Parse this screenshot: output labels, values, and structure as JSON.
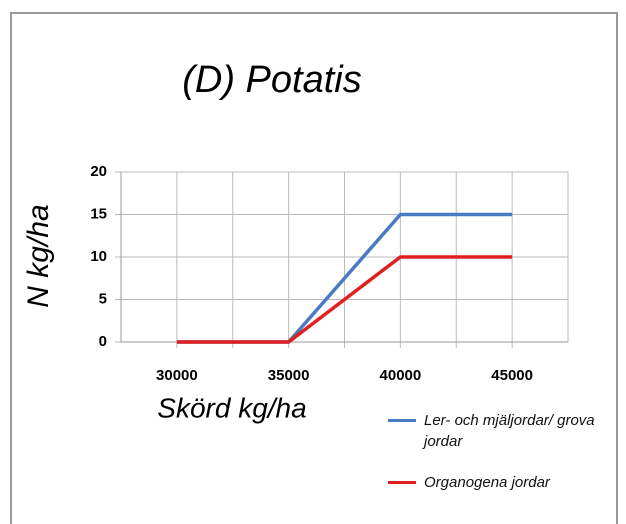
{
  "chart_data": {
    "type": "line",
    "title": "(D) Potatis",
    "x_label": "Skörd kg/ha",
    "y_label": "N kg/ha",
    "x": [
      30000,
      35000,
      40000,
      45000
    ],
    "series": [
      {
        "name": "Ler- och mjäljordar/ grova jordar",
        "color": "#4a7ac4",
        "values": [
          0,
          0,
          15,
          15
        ]
      },
      {
        "name": "Organogena jordar",
        "color": "#e02020",
        "values": [
          0,
          0,
          10,
          10
        ]
      }
    ],
    "xlim": [
      27500,
      47500
    ],
    "xticks": [
      30000,
      35000,
      40000,
      45000
    ],
    "xminor_ticks": [
      32500,
      37500,
      42500
    ],
    "ylim": [
      0,
      20
    ],
    "yticks": [
      0,
      5,
      10,
      15,
      20
    ],
    "grid": true,
    "legend": "lower right"
  }
}
